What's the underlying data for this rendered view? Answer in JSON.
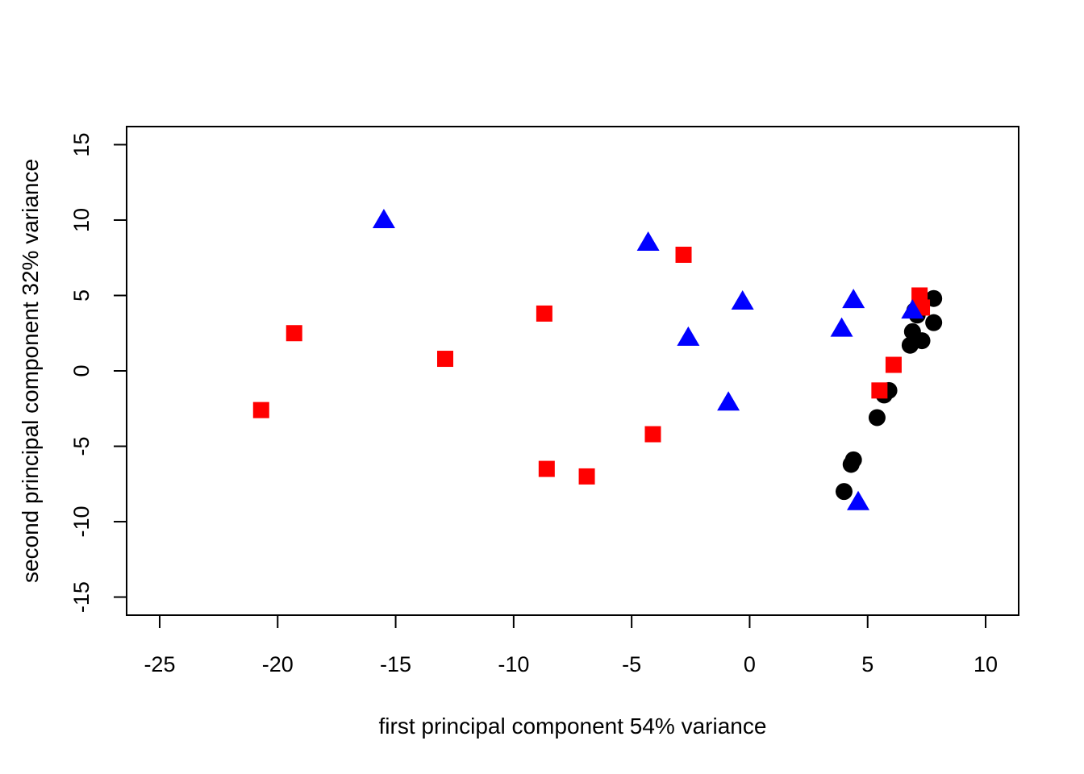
{
  "chart_data": {
    "type": "scatter",
    "title": "",
    "xlabel": "first principal component 54% variance",
    "ylabel": "second principal component 32% variance",
    "xlim": [
      -26.4,
      11.4
    ],
    "ylim": [
      -16.2,
      16.2
    ],
    "x_ticks": [
      -25,
      -20,
      -15,
      -10,
      -5,
      0,
      5,
      10
    ],
    "y_ticks": [
      -15,
      -10,
      -5,
      0,
      5,
      10,
      15
    ],
    "x_tick_labels": [
      "-25",
      "-20",
      "-15",
      "-10",
      "-5",
      "0",
      "5",
      "10"
    ],
    "y_tick_labels": [
      "-15",
      "-10",
      "-5",
      "0",
      "5",
      "10",
      "15"
    ],
    "grid": false,
    "legend": "none",
    "series": [
      {
        "marker": "circle",
        "color": "#000000",
        "points": [
          [
            7.8,
            4.8
          ],
          [
            7.2,
            4.5
          ],
          [
            7.0,
            4.0
          ],
          [
            7.1,
            3.7
          ],
          [
            7.8,
            3.2
          ],
          [
            6.9,
            2.6
          ],
          [
            7.3,
            2.0
          ],
          [
            6.8,
            1.7
          ],
          [
            5.9,
            -1.3
          ],
          [
            5.7,
            -1.6
          ],
          [
            5.4,
            -3.1
          ],
          [
            4.4,
            -5.9
          ],
          [
            4.3,
            -6.2
          ],
          [
            4.0,
            -8.0
          ]
        ]
      },
      {
        "marker": "square",
        "color": "#ff0000",
        "points": [
          [
            -20.7,
            -2.6
          ],
          [
            -19.3,
            2.5
          ],
          [
            -12.9,
            0.8
          ],
          [
            -8.7,
            3.8
          ],
          [
            -8.6,
            -6.5
          ],
          [
            -6.9,
            -7.0
          ],
          [
            -4.1,
            -4.2
          ],
          [
            -2.8,
            7.7
          ],
          [
            5.5,
            -1.3
          ],
          [
            6.1,
            0.4
          ],
          [
            7.2,
            5.0
          ],
          [
            7.3,
            4.2
          ]
        ]
      },
      {
        "marker": "triangle",
        "color": "#0000ff",
        "points": [
          [
            -15.5,
            10.0
          ],
          [
            -4.3,
            8.5
          ],
          [
            -2.6,
            2.2
          ],
          [
            -0.3,
            4.6
          ],
          [
            -0.9,
            -2.1
          ],
          [
            3.9,
            2.8
          ],
          [
            4.4,
            4.7
          ],
          [
            6.9,
            4.0
          ],
          [
            4.6,
            -8.7
          ]
        ]
      }
    ]
  }
}
